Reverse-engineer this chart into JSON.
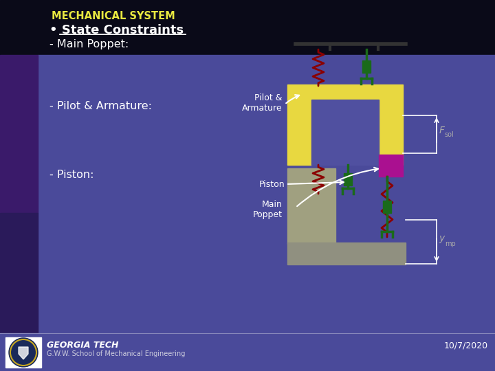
{
  "title": "MECHANICAL SYSTEM",
  "bullet_main": "• State Constraints",
  "item1": "- Main Poppet:",
  "item2": "- Pilot & Armature:",
  "item3": "- Piston:",
  "label_pilot": "Pilot &\nArmature",
  "label_piston": "Piston",
  "label_main_poppet": "Main\nPoppet",
  "footer_institute": "GEORGIA TECH",
  "footer_school": "G.W.W. School of Mechanical Engineering",
  "footer_date": "10/7/2020",
  "bg_dark": "#1a1a3a",
  "bg_mid": "#3a3a7a",
  "bg_light": "#6070b8",
  "bg_purple_left": "#3a1a6a",
  "yellow_body": "#e8d840",
  "gray_body": "#a0a080",
  "gray_base": "#909080",
  "purple_poppet": "#aa1090",
  "spring_red": "#8b0000",
  "spring_green": "#1a6a1a",
  "white": "#ffffff",
  "footer_bg": "#3a3a7a",
  "title_color": "#e8e840",
  "text_color": "#ffffff",
  "fsol_color": "#aaaaaa",
  "ymp_color": "#aaaaaa"
}
